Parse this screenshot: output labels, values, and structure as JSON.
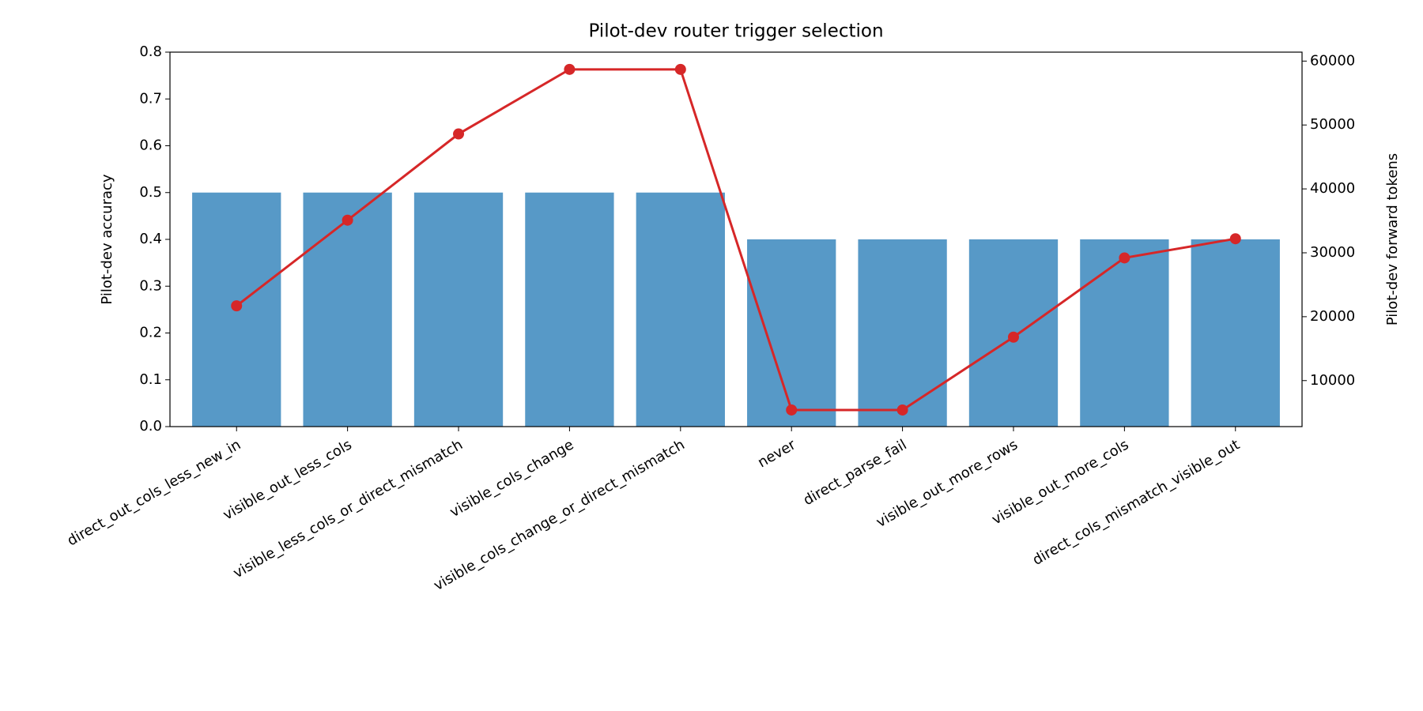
{
  "chart_data": {
    "type": "bar",
    "title": "Pilot-dev router trigger selection",
    "ylabel": "Pilot-dev accuracy",
    "y2label": "Pilot-dev forward tokens",
    "categories": [
      "direct_out_cols_less_new_in",
      "visible_out_less_cols",
      "visible_less_cols_or_direct_mismatch",
      "visible_cols_change",
      "visible_cols_change_or_direct_mismatch",
      "never",
      "direct_parse_fail",
      "visible_out_more_rows",
      "visible_out_more_cols",
      "direct_cols_mismatch_visible_out"
    ],
    "series": [
      {
        "type": "bar",
        "color": "#5799c7",
        "values": [
          0.5,
          0.5,
          0.5,
          0.5,
          0.5,
          0.4,
          0.4,
          0.4,
          0.4,
          0.4
        ]
      },
      {
        "type": "line",
        "axis": "y2",
        "color": "#d62728",
        "values": [
          21700,
          35100,
          48600,
          58700,
          58700,
          5400,
          5400,
          16800,
          29200,
          32200
        ]
      }
    ],
    "ylim": [
      0,
      0.8
    ],
    "yticks": [
      {
        "value": 0,
        "label": "0.0"
      },
      0.1,
      0.2,
      0.3,
      0.4,
      0.5,
      0.6,
      0.7,
      0.8
    ],
    "y2lim": [
      2800,
      61400
    ],
    "y2ticks": [
      10000,
      20000,
      30000,
      40000,
      50000,
      60000
    ]
  }
}
